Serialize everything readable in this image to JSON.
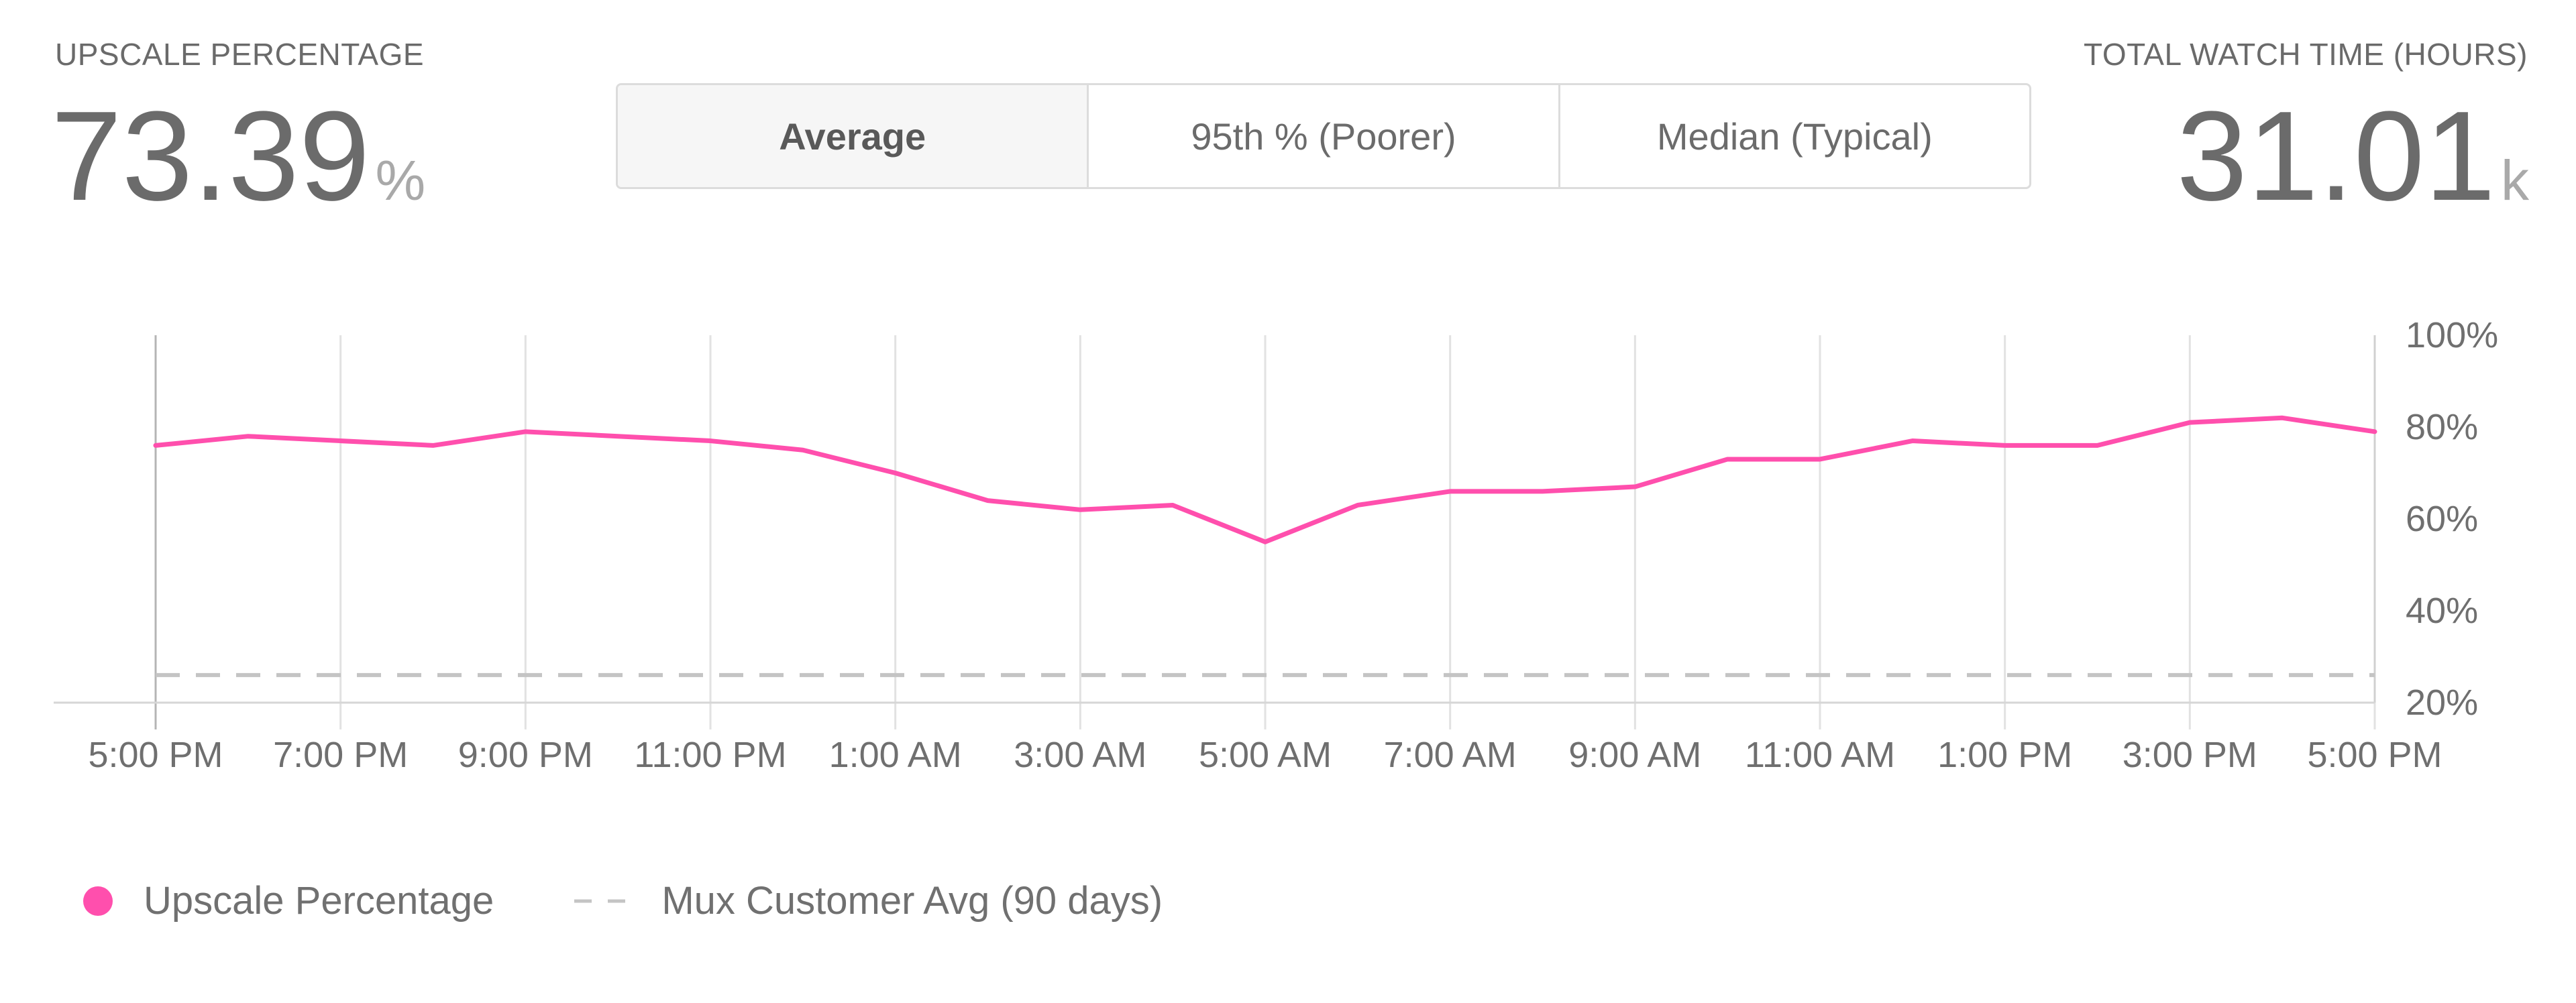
{
  "left_metric": {
    "label": "UPSCALE PERCENTAGE",
    "value": "73.39",
    "unit": "%"
  },
  "right_metric": {
    "label": "TOTAL WATCH TIME (HOURS)",
    "value": "31.01",
    "unit": "k"
  },
  "toggle": {
    "options": [
      "Average",
      "95th % (Poorer)",
      "Median (Typical)"
    ],
    "selected": "Average"
  },
  "legend": {
    "items": [
      {
        "label": "Upscale Percentage",
        "color": "#ff4fad",
        "style": "dot"
      },
      {
        "label": "Mux Customer Avg (90 days)",
        "color": "#c4c4c4",
        "style": "dashed"
      }
    ]
  },
  "chart_data": {
    "type": "line",
    "x": [
      "5:00 PM",
      "6:00 PM",
      "7:00 PM",
      "8:00 PM",
      "9:00 PM",
      "10:00 PM",
      "11:00 PM",
      "12:00 AM",
      "1:00 AM",
      "2:00 AM",
      "3:00 AM",
      "4:00 AM",
      "5:00 AM",
      "6:00 AM",
      "7:00 AM",
      "8:00 AM",
      "9:00 AM",
      "10:00 AM",
      "11:00 AM",
      "12:00 PM",
      "1:00 PM",
      "2:00 PM",
      "3:00 PM",
      "4:00 PM",
      "5:00 PM"
    ],
    "x_tick_labels": [
      "5:00 PM",
      "7:00 PM",
      "9:00 PM",
      "11:00 PM",
      "1:00 AM",
      "3:00 AM",
      "5:00 AM",
      "7:00 AM",
      "9:00 AM",
      "11:00 AM",
      "1:00 PM",
      "3:00 PM",
      "5:00 PM"
    ],
    "series": [
      {
        "name": "Upscale Percentage",
        "color": "#ff4fad",
        "values": [
          76,
          78,
          77,
          76,
          79,
          78,
          77,
          75,
          70,
          64,
          62,
          63,
          55,
          63,
          66,
          66,
          67,
          73,
          73,
          77,
          76,
          76,
          81,
          82,
          79
        ]
      },
      {
        "name": "Mux Customer Avg (90 days)",
        "color": "#c4c4c4",
        "style": "dashed",
        "constant": 26
      }
    ],
    "y_ticks": [
      20,
      40,
      60,
      80,
      100
    ],
    "y_tick_suffix": "%",
    "ylim": [
      20,
      100
    ],
    "y_axis_position": "right",
    "grid": true
  }
}
